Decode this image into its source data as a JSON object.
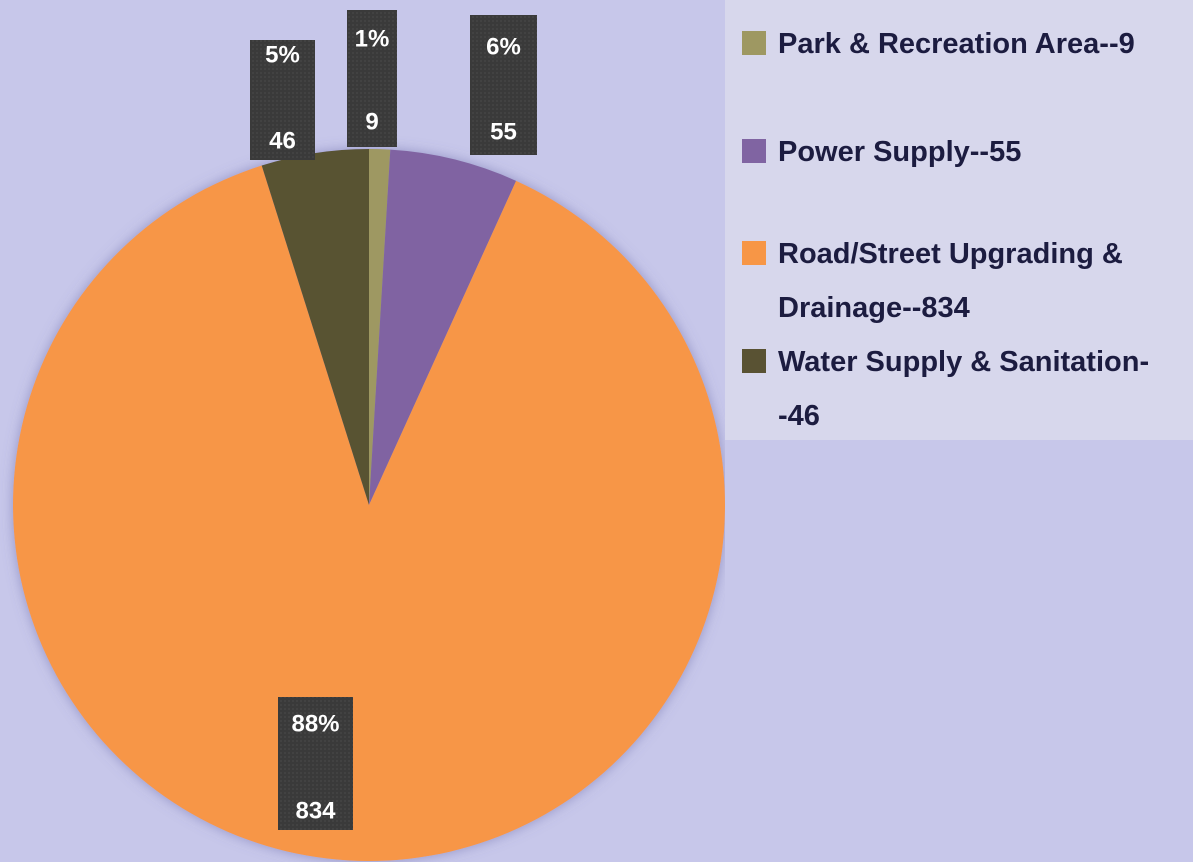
{
  "chart_data": {
    "type": "pie",
    "categories": [
      "Park & Recreation Area--9",
      "Power Supply--55",
      "Road/Street Upgrading & Drainage--834",
      "Water Supply & Sanitation--46"
    ],
    "values": [
      9,
      55,
      834,
      46
    ],
    "percent_labels": [
      "1%",
      "6%",
      "88%",
      "5%"
    ],
    "colors": [
      "#9e9862",
      "#8064a2",
      "#f79646",
      "#595233"
    ],
    "legend": "right"
  }
}
